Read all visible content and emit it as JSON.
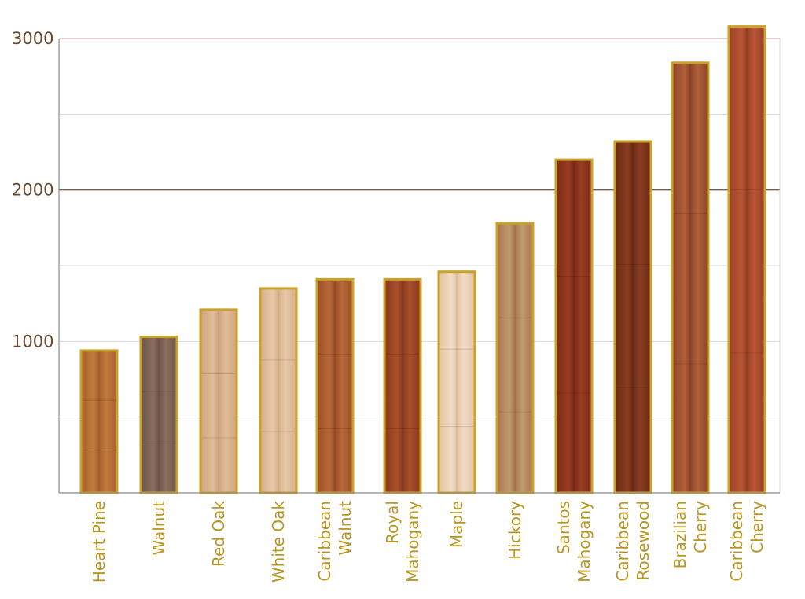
{
  "chart_data": {
    "type": "bar",
    "title": "",
    "xlabel": "",
    "ylabel": "",
    "ylim": [
      0,
      3000
    ],
    "yticks": [
      1000,
      2000,
      3000
    ],
    "grid": true,
    "categories": [
      "Heart Pine",
      "Walnut",
      "Red Oak",
      "White Oak",
      "Caribbean Walnut",
      "Royal Mahogany",
      "Maple",
      "Hickory",
      "Santos Mahogany",
      "Caribbean Rosewood",
      "Brazilian Cherry",
      "Caribbean Cherry"
    ],
    "label_lines": [
      [
        "Heart Pine"
      ],
      [
        "Walnut"
      ],
      [
        "Red Oak"
      ],
      [
        "White Oak"
      ],
      [
        "Caribbean",
        "Walnut"
      ],
      [
        "Royal",
        "Mahogany"
      ],
      [
        "Maple"
      ],
      [
        "Hickory"
      ],
      [
        "Santos",
        "Mahogany"
      ],
      [
        "Caribbean",
        "Rosewood"
      ],
      [
        "Brazilian",
        "Cherry"
      ],
      [
        "Caribbean",
        "Cherry"
      ]
    ],
    "values": [
      940,
      1030,
      1210,
      1350,
      1410,
      1410,
      1460,
      1780,
      2200,
      2320,
      2840,
      3080
    ],
    "colors": {
      "bar_border": "#c9a227",
      "label": "#b8961f",
      "tick": "#6b4a32",
      "axis": "#8b8b8b",
      "gridline_major": "#7a5c48",
      "gridline_minor": "#d9d9d9",
      "top_line": "#c5a0a0",
      "wood": [
        [
          "#a8612a",
          "#c07a3e"
        ],
        [
          "#6e5548",
          "#8a6e5e"
        ],
        [
          "#cfa481",
          "#e2bc98"
        ],
        [
          "#d6ae88",
          "#e8c9a8"
        ],
        [
          "#9a4e24",
          "#b8693a"
        ],
        [
          "#8a3a1c",
          "#a8502a"
        ],
        [
          "#e2c4a2",
          "#f0dcc4"
        ],
        [
          "#a7774c",
          "#c29a70"
        ],
        [
          "#7a2a14",
          "#9a3c22"
        ],
        [
          "#6a2a14",
          "#8a3e22"
        ],
        [
          "#8e4426",
          "#b0603c"
        ],
        [
          "#9a4022",
          "#b85638"
        ]
      ]
    }
  }
}
